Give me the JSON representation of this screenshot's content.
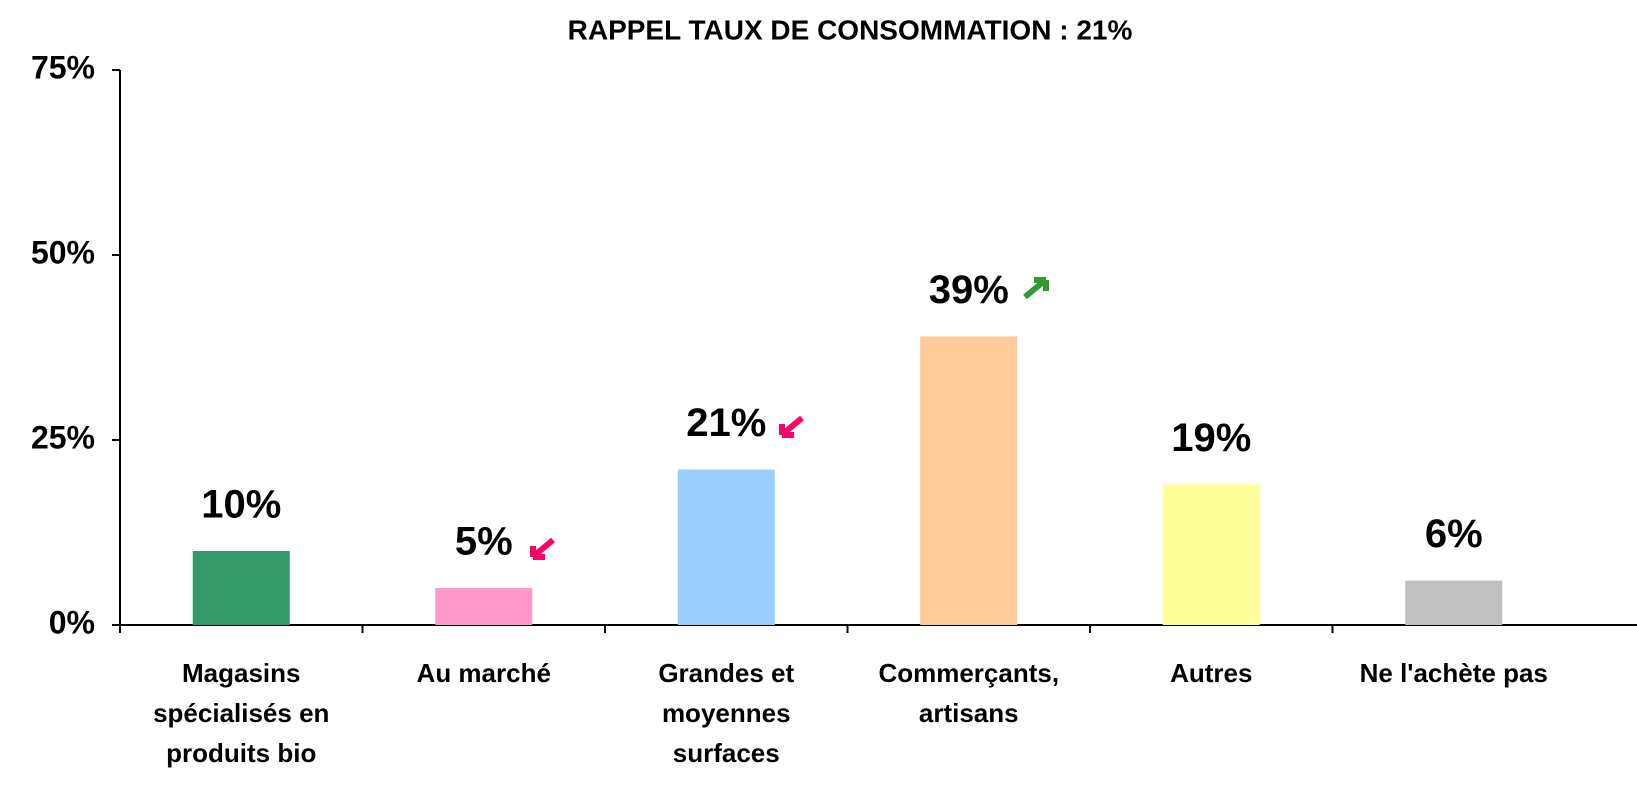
{
  "chart_data": {
    "type": "bar",
    "title": "RAPPEL TAUX DE CONSOMMATION : 21%",
    "categories": [
      "Magasins spécialisés en produits bio",
      "Au marché",
      "Grandes et moyennes surfaces",
      "Commerçants, artisans",
      "Autres",
      "Ne l'achète pas"
    ],
    "values": [
      10,
      5,
      21,
      39,
      19,
      6
    ],
    "value_labels": [
      "10%",
      "5%",
      "21%",
      "39%",
      "19%",
      "6%"
    ],
    "colors": [
      "#339966",
      "#ff99cc",
      "#99ccff",
      "#ffcc99",
      "#ffff99",
      "#c0c0c0"
    ],
    "ylim": [
      0,
      75
    ],
    "yticks": [
      {
        "value": 0,
        "label": "0%"
      },
      {
        "value": 25,
        "label": "25%"
      },
      {
        "value": 50,
        "label": "50%"
      },
      {
        "value": 75,
        "label": "75%"
      }
    ],
    "grid": false
  }
}
